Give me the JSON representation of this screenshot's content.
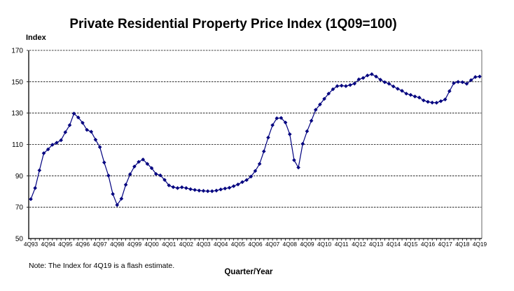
{
  "chart_data": {
    "type": "line",
    "title": "Private Residential Property Price Index (1Q09=100)",
    "ylabel": "Index",
    "xlabel": "Quarter/Year",
    "note": "Note: The Index for 4Q19 is a flash estimate.",
    "ylim": [
      50,
      170
    ],
    "yticks": [
      "50",
      "70",
      "90",
      "110",
      "130",
      "150",
      "170"
    ],
    "grid": "horizontal dashed",
    "legend": "none",
    "colors": {
      "series": "#00007f",
      "grid": "#000000",
      "frame": "#999999"
    },
    "xtick_labels": [
      "4Q93",
      "4Q94",
      "4Q95",
      "4Q96",
      "4Q97",
      "4Q98",
      "4Q99",
      "4Q00",
      "4Q01",
      "4Q02",
      "4Q03",
      "4Q04",
      "4Q05",
      "4Q06",
      "4Q07",
      "4Q08",
      "4Q09",
      "4Q10",
      "4Q11",
      "4Q12",
      "4Q13",
      "4Q14",
      "4Q15",
      "4Q16",
      "4Q17",
      "4Q18",
      "4Q19"
    ],
    "x_start": "4Q93",
    "x_end": "4Q19",
    "series": [
      {
        "values": [
          75.1,
          82.2,
          93.5,
          104.4,
          106.9,
          109.8,
          111.1,
          112.7,
          117.8,
          122.3,
          129.7,
          127.2,
          123.8,
          119.3,
          118.1,
          113.0,
          108.3,
          98.5,
          90.1,
          78.4,
          71.4,
          75.4,
          84.3,
          91.0,
          95.9,
          98.9,
          100.4,
          97.6,
          94.9,
          91.2,
          90.3,
          87.4,
          83.9,
          82.8,
          82.2,
          82.7,
          82.2,
          81.5,
          81.0,
          80.6,
          80.4,
          80.2,
          80.2,
          80.6,
          81.3,
          81.9,
          82.4,
          83.4,
          84.5,
          86.0,
          87.3,
          89.5,
          93.1,
          97.6,
          105.6,
          114.4,
          122.3,
          126.7,
          126.9,
          124.0,
          116.5,
          100.0,
          95.3,
          110.4,
          118.4,
          125.1,
          132.1,
          135.5,
          139.1,
          142.4,
          145.2,
          147.2,
          147.5,
          147.2,
          147.9,
          148.8,
          151.5,
          152.4,
          154.0,
          154.8,
          153.3,
          151.3,
          149.7,
          148.7,
          147.0,
          145.5,
          144.2,
          142.4,
          141.6,
          140.6,
          139.9,
          138.1,
          137.2,
          136.7,
          136.6,
          137.6,
          138.7,
          144.0,
          149.1,
          149.9,
          149.7,
          148.7,
          151.0,
          153.0,
          153.3
        ]
      }
    ]
  }
}
